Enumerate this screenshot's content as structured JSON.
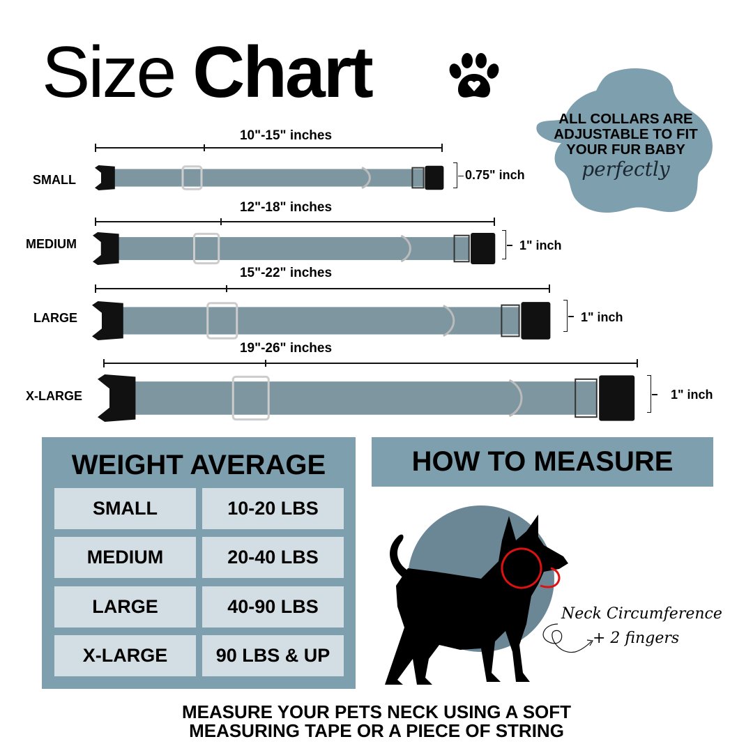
{
  "header": {
    "title_light": "Size",
    "title_bold": "Chart",
    "icon": "paw-heart-icon"
  },
  "callout": {
    "lines": [
      "ALL COLLARS ARE",
      "ADJUSTABLE TO FIT",
      "YOUR FUR BABY"
    ],
    "script": "perfectly",
    "color": "#7d9fae"
  },
  "collars": [
    {
      "size": "SMALL",
      "length": "10\"-15\" inches",
      "width": "0.75\" inch"
    },
    {
      "size": "MEDIUM",
      "length": "12\"-18\" inches",
      "width": "1\" inch"
    },
    {
      "size": "LARGE",
      "length": "15\"-22\" inches",
      "width": "1\" inch"
    },
    {
      "size": "X-LARGE",
      "length": "19\"-26\" inches",
      "width": "1\" inch"
    }
  ],
  "collar_color": "#7d969f",
  "weight": {
    "title": "WEIGHT AVERAGE",
    "rows": [
      {
        "size": "SMALL",
        "range": "10-20 LBS"
      },
      {
        "size": "MEDIUM",
        "range": "20-40 LBS"
      },
      {
        "size": "LARGE",
        "range": "40-90 LBS"
      },
      {
        "size": "X-LARGE",
        "range": "90 LBS & UP"
      }
    ]
  },
  "measure": {
    "title": "HOW TO MEASURE",
    "note_line1": "Neck Circumference",
    "note_line2": "+ 2 fingers"
  },
  "footer": {
    "line1": "MEASURE YOUR PETS NECK USING A SOFT",
    "line2": "MEASURING TAPE OR A PIECE OF STRING"
  }
}
